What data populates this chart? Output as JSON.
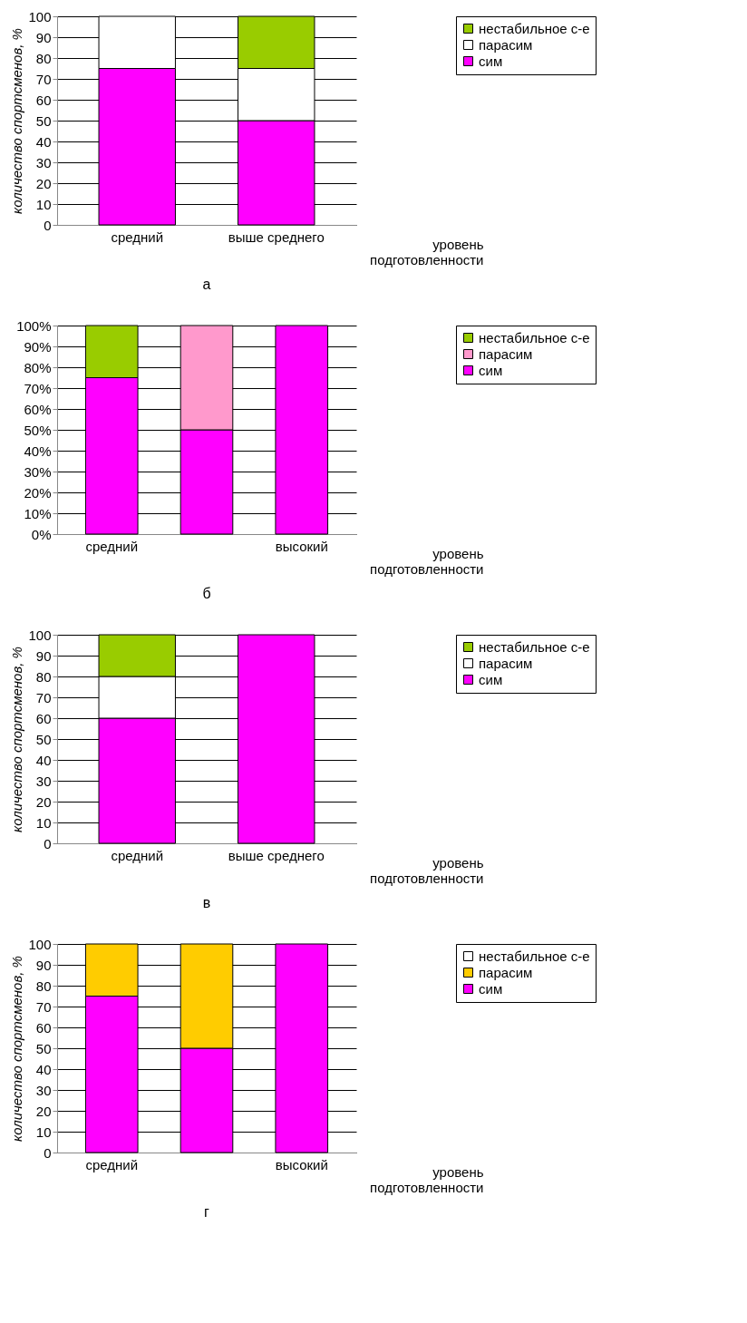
{
  "chart_data": [
    {
      "type": "bar",
      "stacked": true,
      "categories": [
        "средний",
        "выше среднего"
      ],
      "ylabel": "количество спортсменов, %",
      "xlabel": "уровень подготовленности",
      "annotations": [
        "а"
      ],
      "ylim": [
        0,
        100
      ],
      "yticks": [
        0,
        10,
        20,
        30,
        40,
        50,
        60,
        70,
        80,
        90,
        100
      ],
      "grid": "y",
      "legend": "top right",
      "series": [
        {
          "name": "сим",
          "color": "#ff00ff",
          "values": [
            75,
            50
          ]
        },
        {
          "name": "парасим",
          "color": "#ffffff",
          "values": [
            25,
            25
          ]
        },
        {
          "name": "нестабильное с-е",
          "color": "#99cc00",
          "values": [
            0,
            25
          ]
        }
      ]
    },
    {
      "type": "bar",
      "stacked": true,
      "categories": [
        "средний",
        null,
        "высокий"
      ],
      "xlabel": "уровень подготовленности",
      "annotations": [
        "б"
      ],
      "ylim": [
        0,
        100
      ],
      "yticks": [
        {
          "value": 0,
          "label": "0%"
        },
        {
          "value": 10,
          "label": "10%"
        },
        {
          "value": 20,
          "label": "20%"
        },
        {
          "value": 30,
          "label": "30%"
        },
        {
          "value": 40,
          "label": "40%"
        },
        {
          "value": 50,
          "label": "50%"
        },
        {
          "value": 60,
          "label": "60%"
        },
        {
          "value": 70,
          "label": "70%"
        },
        {
          "value": 80,
          "label": "80%"
        },
        {
          "value": 90,
          "label": "90%"
        },
        {
          "value": 100,
          "label": "100%"
        }
      ],
      "grid": "y",
      "legend": "top right",
      "series": [
        {
          "name": "сим",
          "color": "#ff00ff",
          "values": [
            75,
            50,
            100
          ]
        },
        {
          "name": "парасим",
          "color": "#ff99cc",
          "values": [
            0,
            50,
            0
          ]
        },
        {
          "name": "нестабильное с-е",
          "color": "#99cc00",
          "values": [
            25,
            0,
            0
          ]
        }
      ]
    },
    {
      "type": "bar",
      "stacked": true,
      "categories": [
        "средний",
        "выше среднего"
      ],
      "ylabel": "количество спортсменов, %",
      "xlabel": "уровень подготовленности",
      "annotations": [
        "в"
      ],
      "ylim": [
        0,
        100
      ],
      "yticks": [
        0,
        10,
        20,
        30,
        40,
        50,
        60,
        70,
        80,
        90,
        100
      ],
      "grid": "y",
      "legend": "top right",
      "series": [
        {
          "name": "сим",
          "color": "#ff00ff",
          "values": [
            60,
            100
          ]
        },
        {
          "name": "парасим",
          "color": "#ffffff",
          "values": [
            20,
            0
          ]
        },
        {
          "name": "нестабильное с-е",
          "color": "#99cc00",
          "values": [
            20,
            0
          ]
        }
      ]
    },
    {
      "type": "bar",
      "stacked": true,
      "categories": [
        "средний",
        null,
        "высокий"
      ],
      "ylabel": "количество спортсменов, %",
      "xlabel": "уровень подготовленности",
      "annotations": [
        "г"
      ],
      "ylim": [
        0,
        100
      ],
      "yticks": [
        0,
        10,
        20,
        30,
        40,
        50,
        60,
        70,
        80,
        90,
        100
      ],
      "grid": "y",
      "legend": "top right",
      "series": [
        {
          "name": "сим",
          "color": "#ff00ff",
          "values": [
            75,
            50,
            100
          ]
        },
        {
          "name": "парасим",
          "color": "#ffcc00",
          "values": [
            25,
            50,
            0
          ]
        },
        {
          "name": "нестабильное с-е",
          "color": "#ffffff",
          "values": [
            0,
            0,
            0
          ]
        }
      ]
    }
  ]
}
